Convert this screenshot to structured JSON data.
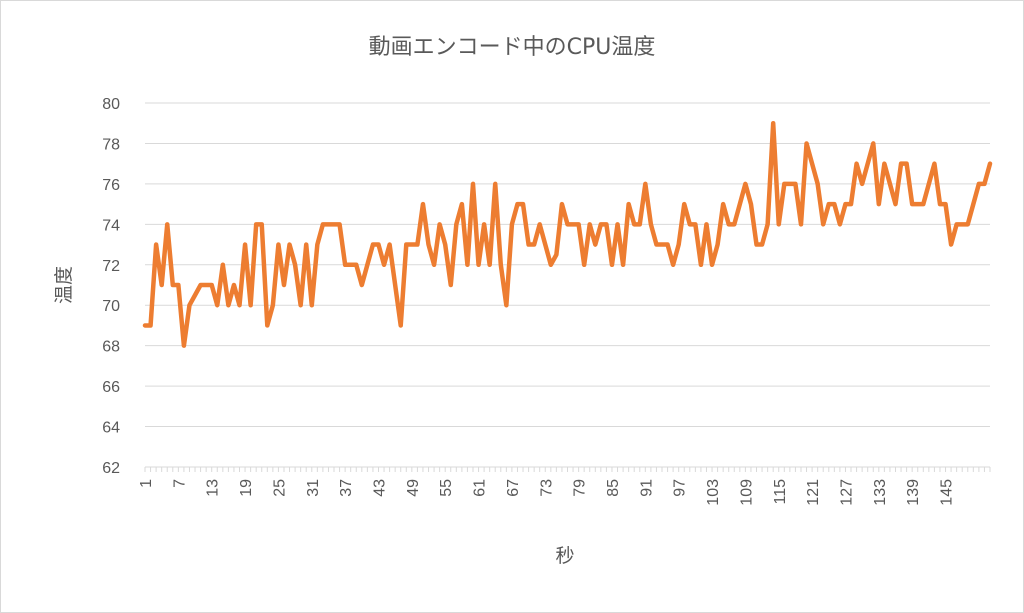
{
  "chart_data": {
    "type": "line",
    "title": "動画エンコード中のCPU温度",
    "xlabel": "秒",
    "ylabel": "温度",
    "ylim": [
      62,
      80
    ],
    "yticks": [
      62,
      64,
      66,
      68,
      70,
      72,
      74,
      76,
      78,
      80
    ],
    "xtick_labels": [
      1,
      7,
      13,
      19,
      25,
      31,
      37,
      43,
      49,
      55,
      61,
      67,
      73,
      79,
      85,
      91,
      97,
      103,
      109,
      115,
      121,
      127,
      133,
      139,
      145
    ],
    "grid": true,
    "series": [
      {
        "name": "CPU温度",
        "color": "#ed7d31",
        "x_start": 1,
        "values": [
          69,
          69,
          73,
          71,
          74,
          71,
          71,
          68,
          70,
          70.5,
          71,
          71,
          71,
          70,
          72,
          70,
          71,
          70,
          73,
          70,
          74,
          74,
          69,
          70,
          73,
          71,
          73,
          72,
          70,
          73,
          70,
          73,
          74,
          74,
          74,
          74,
          72,
          72,
          72,
          71,
          72,
          73,
          73,
          72,
          73,
          71,
          69,
          73,
          73,
          73,
          75,
          73,
          72,
          74,
          73,
          71,
          74,
          75,
          72,
          76,
          72,
          74,
          72,
          76,
          72,
          70,
          74,
          75,
          75,
          73,
          73,
          74,
          73,
          72,
          72.5,
          75,
          74,
          74,
          74,
          72,
          74,
          73,
          74,
          74,
          72,
          74,
          72,
          75,
          74,
          74,
          76,
          74,
          73,
          73,
          73,
          72,
          73,
          75,
          74,
          74,
          72,
          74,
          72,
          73,
          75,
          74,
          74,
          75,
          76,
          75,
          73,
          73,
          74,
          79,
          74,
          76,
          76,
          76,
          74,
          78,
          77,
          76,
          74,
          75,
          75,
          74,
          75,
          75,
          77,
          76,
          77,
          78,
          75,
          77,
          76,
          75,
          77,
          77,
          75,
          75,
          75,
          76,
          77,
          75,
          75,
          73,
          74,
          74,
          74,
          75,
          76,
          76,
          77
        ]
      }
    ]
  }
}
